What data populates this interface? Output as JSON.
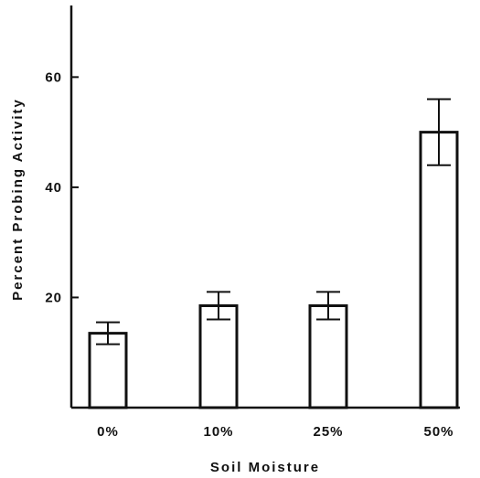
{
  "chart_data": {
    "type": "bar",
    "xlabel": "Soil Moisture",
    "ylabel": "Percent Probing Activity",
    "categories": [
      "0%",
      "10%",
      "25%",
      "50%"
    ],
    "series": [
      {
        "values": [
          13.5,
          18.5,
          18.5,
          50
        ],
        "errors": [
          2,
          2.5,
          2.5,
          6
        ]
      }
    ],
    "ylim": [
      0,
      73
    ],
    "yticks": [
      20,
      40,
      60
    ],
    "grid": false,
    "legend": "none",
    "colors": {
      "bar_fill": "#ffffff",
      "stroke": "#111111"
    }
  }
}
